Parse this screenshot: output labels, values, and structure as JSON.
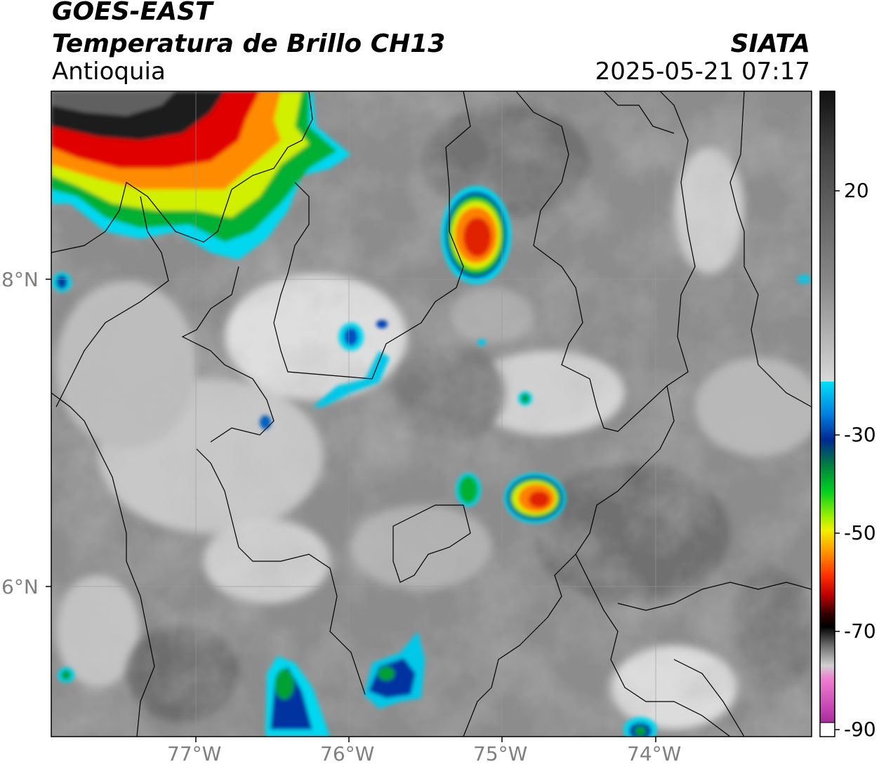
{
  "header": {
    "satellite": "GOES-EAST",
    "product": "Temperatura de Brillo CH13",
    "region": "Antioquia",
    "organization": "SIATA",
    "datetime": "2025-05-21 07:17"
  },
  "axes": {
    "latitude_labels": [
      "8°N",
      "6°N"
    ],
    "longitude_labels": [
      "77°W",
      "76°W",
      "75°W",
      "74°W"
    ]
  },
  "colorbar": {
    "tick_labels": [
      "20",
      "-30",
      "-50",
      "-70",
      "-90"
    ],
    "tick_values": [
      20,
      -30,
      -50,
      -70,
      -90
    ],
    "range": [
      -90,
      40
    ],
    "colors": {
      "warm_gray_light": "#e8e8e8",
      "gray_dark": "#6a6a6a",
      "cyan": "#00d8f0",
      "blue": "#0030a0",
      "green": "#00c020",
      "yellow": "#e0f000",
      "orange": "#ff8000",
      "red": "#e00000",
      "black": "#101010",
      "magenta": "#e060c0"
    }
  }
}
